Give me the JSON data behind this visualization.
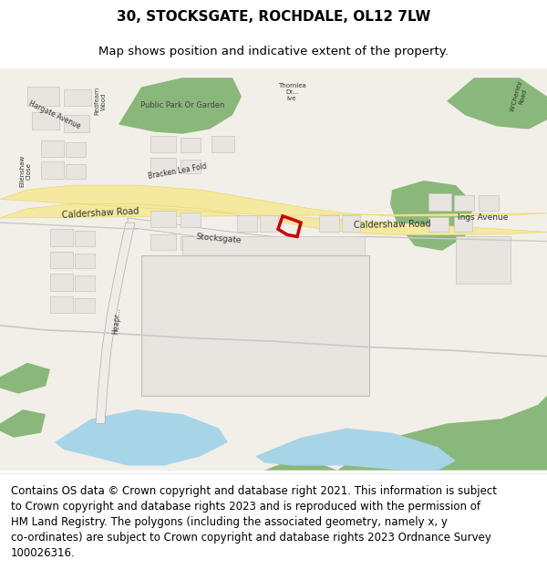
{
  "title": "30, STOCKSGATE, ROCHDALE, OL12 7LW",
  "subtitle": "Map shows position and indicative extent of the property.",
  "footer_line1": "Contains OS data © Crown copyright and database right 2021. This information is subject",
  "footer_line2": "to Crown copyright and database rights 2023 and is reproduced with the permission of",
  "footer_line3": "HM Land Registry. The polygons (including the associated geometry, namely x, y",
  "footer_line4": "co-ordinates) are subject to Crown copyright and database rights 2023 Ordnance Survey",
  "footer_line5": "100026316.",
  "title_fontsize": 11,
  "subtitle_fontsize": 9.5,
  "footer_fontsize": 8.5,
  "map_bg": "#f2efe9",
  "road_yellow": "#f5e9a0",
  "road_outline": "#e8d870",
  "green_area": "#8ab87a",
  "blue_water": "#a8d4e8",
  "building_fill": "#e8e4df",
  "building_edge": "#c8c4bf",
  "white_bg": "#ffffff",
  "red_polygon": "#cc0000",
  "light_gray_road": "#dcdcdc",
  "text_color": "#000000"
}
